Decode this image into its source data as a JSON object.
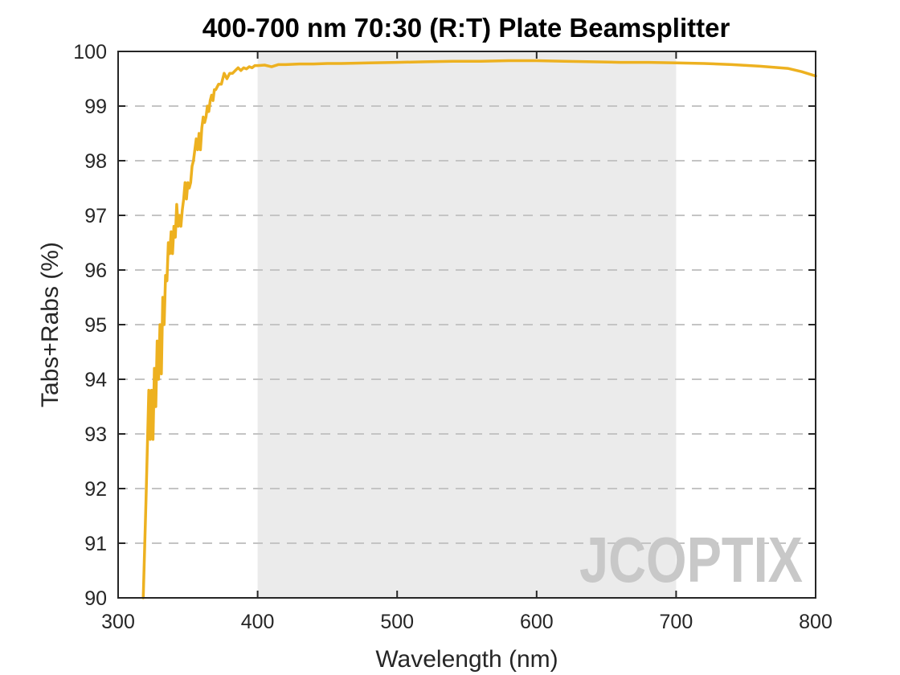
{
  "chart_data": {
    "type": "line",
    "title": "400-700 nm 70:30 (R:T) Plate Beamsplitter",
    "xlabel": "Wavelength (nm)",
    "ylabel": "Tabs+Rabs (%)",
    "xlim": [
      300,
      800
    ],
    "ylim": [
      90,
      100
    ],
    "xticks": [
      "300",
      "400",
      "500",
      "600",
      "700",
      "800"
    ],
    "yticks": [
      "90",
      "91",
      "92",
      "93",
      "94",
      "95",
      "96",
      "97",
      "98",
      "99",
      "100"
    ],
    "grid": "horizontal-dashed",
    "shaded_band": {
      "x_from": 400,
      "x_to": 700,
      "color": "#ebebeb"
    },
    "line_color": "#edb120",
    "series": [
      {
        "x": [
          318,
          320,
          322,
          323,
          324,
          325,
          326,
          327,
          328,
          329,
          330,
          331,
          332,
          333,
          334,
          335,
          336,
          337,
          338,
          339,
          340,
          341,
          342,
          343,
          344,
          345,
          346,
          347,
          348,
          349,
          350,
          351,
          352,
          353,
          354,
          355,
          356,
          357,
          358,
          359,
          360,
          361,
          362,
          363,
          364,
          365,
          366,
          367,
          368,
          369,
          370,
          372,
          374,
          376,
          378,
          380,
          382,
          384,
          386,
          388,
          390,
          392,
          394,
          396,
          398,
          400,
          405,
          410,
          415,
          420,
          430,
          440,
          450,
          460,
          480,
          500,
          520,
          540,
          560,
          580,
          600,
          620,
          640,
          660,
          680,
          700,
          720,
          740,
          760,
          780,
          790,
          800
        ],
        "y": [
          90.0,
          91.8,
          93.8,
          92.9,
          93.8,
          92.9,
          94.2,
          93.5,
          94.7,
          94.0,
          95.0,
          94.1,
          95.5,
          95.0,
          95.9,
          95.8,
          96.5,
          96.3,
          96.7,
          96.3,
          96.8,
          96.6,
          97.2,
          96.8,
          97.0,
          96.8,
          97.1,
          97.3,
          97.6,
          97.3,
          97.6,
          97.5,
          97.6,
          97.9,
          98.0,
          98.2,
          98.4,
          98.2,
          98.5,
          98.2,
          98.6,
          98.8,
          98.7,
          98.8,
          99.0,
          98.9,
          99.1,
          99.2,
          99.1,
          99.3,
          99.3,
          99.4,
          99.4,
          99.6,
          99.5,
          99.6,
          99.6,
          99.65,
          99.7,
          99.65,
          99.7,
          99.68,
          99.72,
          99.7,
          99.74,
          99.74,
          99.75,
          99.72,
          99.76,
          99.76,
          99.77,
          99.77,
          99.78,
          99.78,
          99.79,
          99.8,
          99.81,
          99.82,
          99.82,
          99.83,
          99.83,
          99.82,
          99.81,
          99.8,
          99.8,
          99.79,
          99.78,
          99.76,
          99.73,
          99.69,
          99.63,
          99.55
        ]
      }
    ]
  },
  "watermark": {
    "text": "JCOPTIX"
  }
}
